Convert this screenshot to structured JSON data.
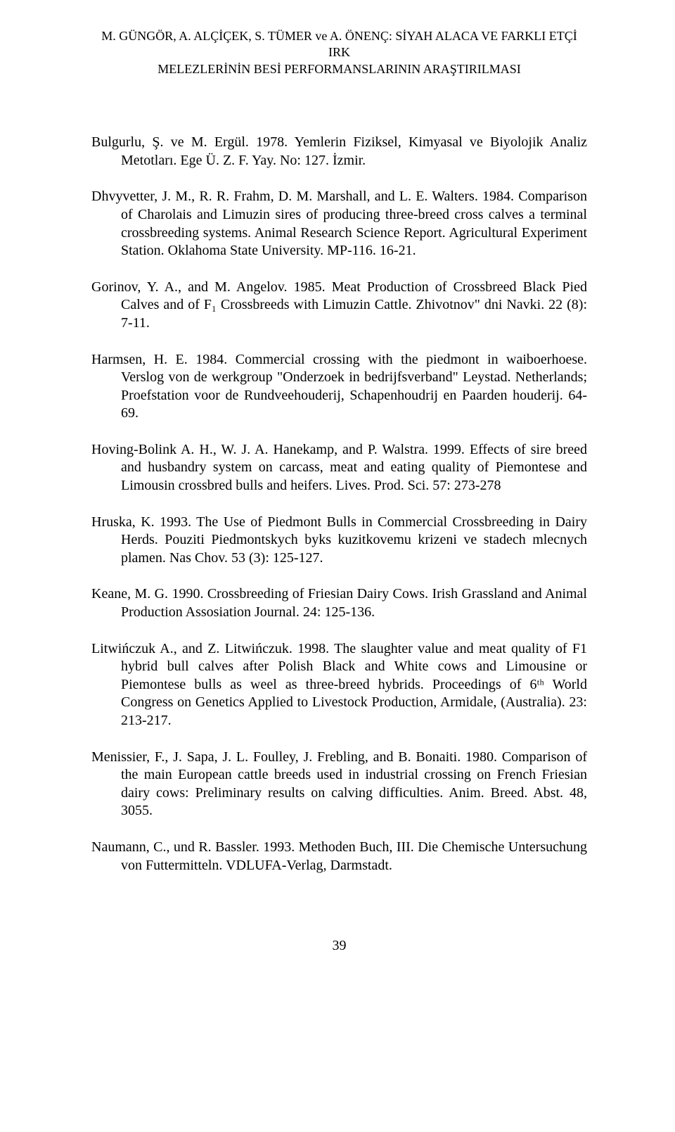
{
  "running_head": {
    "line1": "M. GÜNGÖR, A. ALÇİÇEK, S. TÜMER ve A. ÖNENÇ: SİYAH ALACA VE FARKLI ETÇİ IRK",
    "line2": "MELEZLERİNİN BESİ PERFORMANSLARININ ARAŞTIRILMASI"
  },
  "references": [
    "Bulgurlu, Ş. ve M. Ergül. 1978. Yemlerin Fiziksel, Kimyasal ve Biyolojik Analiz Metotları. Ege Ü. Z. F. Yay. No: 127. İzmir.",
    "Dhvyvetter, J. M., R. R. Frahm, D. M. Marshall, and L. E. Walters. 1984. Comparison of Charolais and Limuzin sires of producing three-breed cross calves a terminal crossbreeding systems. Animal Research Science Report. Agricultural Experiment Station. Oklahoma State University. MP-116. 16-21.",
    "Gorinov, Y. A., and M. Angelov. 1985. Meat Production of Crossbreed Black Pied Calves and of F₁ Crossbreeds with Limuzin Cattle. Zhivotnov\" dni Navki. 22 (8): 7-11.",
    "Harmsen, H. E. 1984. Commercial crossing with the piedmont in waiboerhoese. Verslog von de werkgroup \"Onderzoek in bedrijfsverband\" Leystad. Netherlands; Proefstation voor de Rundveehouderij, Schapenhoudrij en Paarden houderij. 64-69.",
    "Hoving-Bolink A. H., W. J. A. Hanekamp, and P. Walstra. 1999. Effects of sire breed and husbandry system on carcass, meat and eating quality of Piemontese and Limousin crossbred bulls and heifers. Lives. Prod. Sci. 57: 273-278",
    "Hruska, K. 1993. The Use of Piedmont Bulls in Commercial Crossbreeding in Dairy Herds. Pouziti Piedmontskych byks kuzitkovemu krizeni ve stadech mlecnych plamen. Nas Chov. 53 (3): 125-127.",
    "Keane, M. G. 1990. Crossbreeding of Friesian Dairy Cows. Irish Grassland and Animal Production Assosiation Journal. 24: 125-136.",
    "Litwińczuk A., and Z. Litwińczuk. 1998. The slaughter value and meat quality of F1 hybrid bull calves after Polish Black and White cows and Limousine or Piemontese bulls as weel as three-breed hybrids. Proceedings of 6ᵗʰ World Congress on Genetics Applied to Livestock Production, Armidale, (Australia). 23: 213-217.",
    "Menissier, F., J. Sapa, J. L. Foulley, J. Frebling, and B. Bonaiti. 1980. Comparison of the main European cattle breeds used in industrial crossing on French Friesian dairy cows: Preliminary results on calving difficulties. Anim. Breed. Abst. 48, 3055.",
    "Naumann, C., und R. Bassler. 1993. Methoden Buch, III. Die Chemische Untersuchung von Futtermitteln. VDLUFA-Verlag, Darmstadt."
  ],
  "page_number": "39"
}
